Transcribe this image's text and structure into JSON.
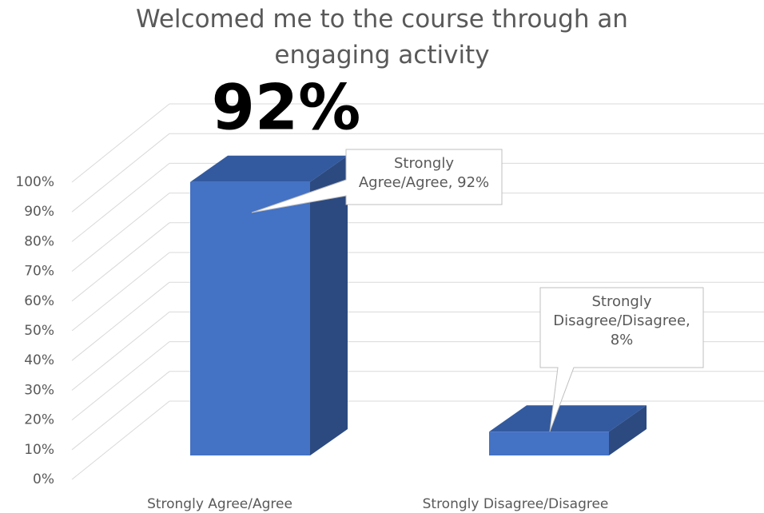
{
  "chart_data": {
    "type": "bar3d",
    "title": "Welcomed me to the course through an engaging activity",
    "annotation": "92%",
    "categories": [
      "Strongly Agree/Agree",
      "Strongly Disagree/Disagree"
    ],
    "values": [
      92,
      8
    ],
    "value_labels": [
      "Strongly Agree/Agree, 92%",
      "Strongly Disagree/Disagree, 8%"
    ],
    "color": "#4472c4",
    "ylim": [
      0,
      100
    ],
    "yticks": [
      {
        "value": 0,
        "label": "0%"
      },
      {
        "value": 10,
        "label": "10%"
      },
      {
        "value": 20,
        "label": "20%"
      },
      {
        "value": 30,
        "label": "30%"
      },
      {
        "value": 40,
        "label": "40%"
      },
      {
        "value": 50,
        "label": "50%"
      },
      {
        "value": 60,
        "label": "60%"
      },
      {
        "value": 70,
        "label": "70%"
      },
      {
        "value": 80,
        "label": "80%"
      },
      {
        "value": 90,
        "label": "90%"
      },
      {
        "value": 100,
        "label": "100%"
      }
    ],
    "grid": true
  }
}
